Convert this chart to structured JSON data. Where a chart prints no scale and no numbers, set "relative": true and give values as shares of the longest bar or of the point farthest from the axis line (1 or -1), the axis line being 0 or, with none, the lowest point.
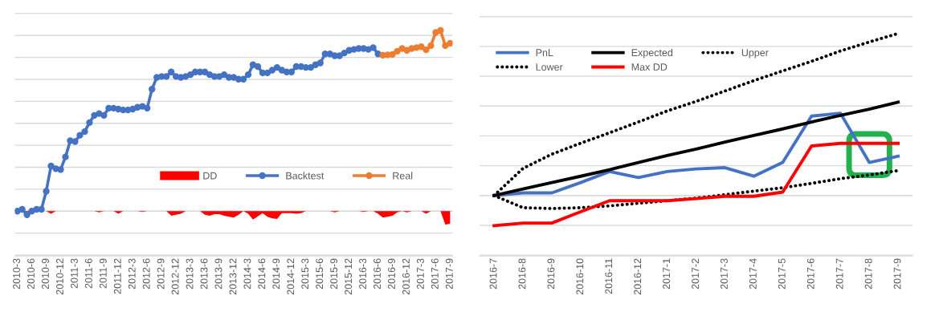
{
  "chart_data": [
    {
      "type": "line",
      "relative": true,
      "grid": "y",
      "legend": "lower right",
      "categories": [
        "2010-3",
        null,
        null,
        "2010-6",
        null,
        null,
        "2010-9",
        null,
        null,
        "2010-12",
        null,
        null,
        "2011-3",
        null,
        null,
        "2011-6",
        null,
        null,
        "2011-9",
        null,
        null,
        "2011-12",
        null,
        null,
        "2012-3",
        null,
        null,
        "2012-6",
        null,
        null,
        "2012-9",
        null,
        null,
        "2012-12",
        null,
        null,
        "2013-3",
        null,
        null,
        "2013-6",
        null,
        null,
        "2013-9",
        null,
        null,
        "2013-12",
        null,
        null,
        "2014-3",
        null,
        null,
        "2014-6",
        null,
        null,
        "2014-9",
        null,
        null,
        "2014-12",
        null,
        null,
        "2015-3",
        null,
        null,
        "2015-6",
        null,
        null,
        "2015-9",
        null,
        null,
        "2015-12",
        null,
        null,
        "2016-3",
        null,
        null,
        "2016-6",
        null,
        null,
        "2016-9",
        null,
        null,
        "2016-12",
        null,
        null,
        "2017-3",
        null,
        null,
        "2017-6",
        null,
        null,
        "2017-9"
      ],
      "series": [
        {
          "name": "DD",
          "type": "area",
          "color": "#ff0000",
          "values": [
            0,
            0,
            -0.02,
            0,
            0,
            0,
            0,
            -0.014,
            0,
            0,
            0,
            0,
            0,
            0,
            0,
            0,
            0,
            -0.007,
            0,
            0,
            0,
            -0.014,
            0,
            0,
            0,
            0,
            -0.004,
            0,
            0,
            0,
            0,
            0,
            -0.026,
            -0.02,
            -0.014,
            0,
            0,
            0,
            0,
            -0.02,
            -0.026,
            -0.017,
            -0.017,
            -0.026,
            -0.031,
            -0.036,
            -0.02,
            0,
            -0.014,
            -0.046,
            -0.029,
            -0.011,
            -0.031,
            -0.04,
            -0.043,
            -0.011,
            -0.011,
            -0.011,
            -0.014,
            -0.011,
            0,
            0,
            0,
            0,
            0,
            0,
            -0.007,
            0,
            0,
            0,
            0,
            0,
            -0.004,
            0,
            0,
            -0.014,
            -0.036,
            -0.031,
            -0.026,
            -0.007,
            0,
            -0.007,
            0,
            0,
            0,
            -0.014,
            0,
            0,
            0,
            -0.074,
            -0.07
          ]
        },
        {
          "name": "Backtest",
          "type": "line",
          "marker": "circle",
          "color": "#4472c4",
          "values": [
            0,
            0.01,
            -0.02,
            0.0,
            0.01,
            0.01,
            0.11,
            0.25,
            0.235,
            0.23,
            0.3,
            0.39,
            0.385,
            0.42,
            0.44,
            0.49,
            0.53,
            0.54,
            0.53,
            0.57,
            0.57,
            0.565,
            0.56,
            0.56,
            0.565,
            0.575,
            0.58,
            0.57,
            0.675,
            0.74,
            0.745,
            0.745,
            0.77,
            0.745,
            0.74,
            0.745,
            0.755,
            0.77,
            0.77,
            0.77,
            0.755,
            0.745,
            0.745,
            0.755,
            0.74,
            0.74,
            0.73,
            0.73,
            0.755,
            0.81,
            0.8,
            0.765,
            0.765,
            0.78,
            0.795,
            0.78,
            0.77,
            0.77,
            0.8,
            0.8,
            0.795,
            0.795,
            0.81,
            0.82,
            0.87,
            0.87,
            0.86,
            0.86,
            0.875,
            0.89,
            0.895,
            0.9,
            0.9,
            0.895,
            0.905,
            0.87,
            null,
            null,
            null,
            null,
            null,
            null,
            null,
            null,
            null,
            null,
            null,
            null,
            null,
            null,
            null
          ]
        },
        {
          "name": "Real",
          "type": "line",
          "marker": "circle",
          "color": "#ed7d31",
          "values": [
            null,
            null,
            null,
            null,
            null,
            null,
            null,
            null,
            null,
            null,
            null,
            null,
            null,
            null,
            null,
            null,
            null,
            null,
            null,
            null,
            null,
            null,
            null,
            null,
            null,
            null,
            null,
            null,
            null,
            null,
            null,
            null,
            null,
            null,
            null,
            null,
            null,
            null,
            null,
            null,
            null,
            null,
            null,
            null,
            null,
            null,
            null,
            null,
            null,
            null,
            null,
            null,
            null,
            null,
            null,
            null,
            null,
            null,
            null,
            null,
            null,
            null,
            null,
            null,
            null,
            null,
            null,
            null,
            null,
            null,
            null,
            null,
            null,
            null,
            null,
            null,
            0.863,
            0.865,
            0.867,
            0.885,
            0.9,
            0.89,
            0.9,
            0.905,
            0.91,
            0.893,
            0.916,
            0.989,
            1,
            0.916,
            0.929
          ]
        }
      ]
    },
    {
      "type": "line",
      "relative": true,
      "grid": "y",
      "legend": "upper left",
      "categories": [
        "2016-7",
        "2016-8",
        "2016-9",
        "2016-10",
        "2016-11",
        "2016-12",
        "2017-1",
        "2017-2",
        "2017-3",
        "2017-4",
        "2017-5",
        "2017-6",
        "2017-7",
        "2017-8",
        "2017-9"
      ],
      "series": [
        {
          "name": "PnL",
          "color": "#4472c4",
          "values": [
            0,
            0.016,
            0.016,
            0.08,
            0.148,
            0.111,
            0.148,
            0.164,
            0.172,
            0.119,
            0.204,
            0.49,
            0.508,
            0.204,
            0.242
          ]
        },
        {
          "name": "Expected",
          "color": "#000000",
          "values": [
            0,
            0.04,
            0.08,
            0.119,
            0.159,
            0.204,
            0.247,
            0.287,
            0.33,
            0.371,
            0.411,
            0.454,
            0.494,
            0.533,
            0.576
          ]
        },
        {
          "name": "Upper",
          "color": "#000000",
          "line_style": "dotted",
          "values": [
            0,
            0.167,
            0.255,
            0.323,
            0.387,
            0.454,
            0.522,
            0.581,
            0.645,
            0.709,
            0.769,
            0.828,
            0.892,
            0.947,
            1
          ]
        },
        {
          "name": "Lower",
          "color": "#000000",
          "line_style": "dotted",
          "values": [
            0,
            -0.075,
            -0.08,
            -0.075,
            -0.064,
            -0.048,
            -0.032,
            -0.016,
            0.005,
            0.027,
            0.048,
            0.075,
            0.104,
            0.127,
            0.154
          ]
        },
        {
          "name": "Max DD",
          "color": "#ff0000",
          "values": [
            -0.186,
            -0.17,
            -0.17,
            -0.1,
            -0.032,
            -0.032,
            -0.032,
            -0.019,
            -0.005,
            -0.005,
            0.021,
            0.306,
            0.322,
            0.322,
            0.322
          ]
        }
      ]
    }
  ]
}
